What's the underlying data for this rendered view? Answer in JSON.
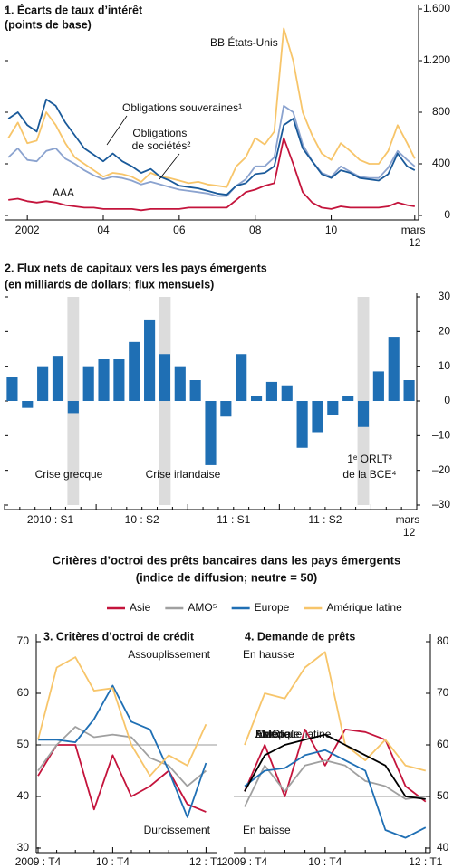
{
  "section": {
    "title": "Critères d’octroi des prêts bancaires dans les pays émergents",
    "subtitle": "(indice de diffusion; neutre = 50)"
  },
  "chart_data": [
    {
      "type": "line",
      "title": "1. Écarts de taux d’intérêt",
      "subtitle": "(points de base)",
      "x": [
        2001.5,
        2001.75,
        2002,
        2002.25,
        2002.5,
        2002.75,
        2003,
        2003.25,
        2003.5,
        2003.75,
        2004,
        2004.25,
        2004.5,
        2004.75,
        2005,
        2005.25,
        2005.5,
        2005.75,
        2006,
        2006.25,
        2006.5,
        2006.75,
        2007,
        2007.25,
        2007.5,
        2007.75,
        2008,
        2008.25,
        2008.5,
        2008.75,
        2009,
        2009.25,
        2009.5,
        2009.75,
        2010,
        2010.25,
        2010.5,
        2010.75,
        2011,
        2011.25,
        2011.5,
        2011.75,
        2012,
        2012.2
      ],
      "series": [
        {
          "name": "BB États-Unis",
          "color": "#f7c56a",
          "values": [
            600,
            720,
            560,
            580,
            800,
            700,
            560,
            450,
            400,
            350,
            300,
            330,
            320,
            300,
            260,
            330,
            300,
            290,
            270,
            250,
            260,
            240,
            230,
            220,
            380,
            450,
            600,
            550,
            650,
            1450,
            1200,
            800,
            620,
            480,
            430,
            560,
            500,
            430,
            400,
            400,
            500,
            700,
            560,
            440
          ]
        },
        {
          "name": "Obligations de sociétés²",
          "color": "#8ba3cf",
          "values": [
            450,
            520,
            430,
            420,
            500,
            520,
            440,
            400,
            350,
            310,
            280,
            300,
            290,
            270,
            240,
            260,
            240,
            220,
            200,
            190,
            180,
            170,
            150,
            150,
            230,
            280,
            380,
            380,
            450,
            850,
            800,
            550,
            420,
            330,
            300,
            380,
            340,
            300,
            290,
            290,
            370,
            500,
            430,
            380
          ]
        },
        {
          "name": "Obligations souveraines¹",
          "color": "#1a5a9a",
          "values": [
            750,
            800,
            700,
            650,
            900,
            850,
            720,
            620,
            520,
            470,
            420,
            480,
            420,
            380,
            330,
            360,
            300,
            270,
            230,
            220,
            210,
            190,
            170,
            160,
            230,
            250,
            320,
            330,
            380,
            700,
            750,
            520,
            420,
            320,
            290,
            350,
            330,
            290,
            280,
            270,
            320,
            480,
            380,
            350
          ]
        },
        {
          "name": "AAA",
          "color": "#c4143c",
          "values": [
            120,
            130,
            110,
            100,
            110,
            100,
            80,
            70,
            60,
            60,
            50,
            50,
            50,
            50,
            40,
            50,
            50,
            50,
            50,
            60,
            60,
            60,
            60,
            60,
            120,
            180,
            200,
            230,
            250,
            600,
            400,
            180,
            100,
            60,
            50,
            70,
            60,
            60,
            60,
            60,
            70,
            100,
            80,
            70
          ]
        }
      ],
      "xlim": [
        2001.4,
        2012.3
      ],
      "xticks": [
        2002,
        {
          "value": 2004,
          "label": "04"
        },
        {
          "value": 2006,
          "label": "06"
        },
        {
          "value": 2008,
          "label": "08"
        },
        {
          "value": 2010,
          "label": "10"
        },
        {
          "value": 2012.2,
          "label": "mars 12"
        }
      ],
      "ylim": [
        0,
        1600
      ],
      "yticks": [
        0,
        400,
        800,
        {
          "value": 1200,
          "label": "1.200"
        },
        {
          "value": 1600,
          "label": "1.600"
        }
      ]
    },
    {
      "type": "bar",
      "title": "2. Flux nets de capitaux vers les pays émergents",
      "subtitle": "(en milliards de dollars; flux mensuels)",
      "categories": [
        null,
        null,
        null,
        "2010 : S1",
        null,
        null,
        null,
        null,
        null,
        "10 : S2",
        null,
        null,
        null,
        null,
        null,
        "11 : S1",
        null,
        null,
        null,
        null,
        null,
        "11 : S2",
        null,
        null,
        null,
        null,
        "mars 12"
      ],
      "values": [
        7,
        -2,
        10,
        13,
        -3.5,
        10,
        12,
        12,
        17,
        23.5,
        13.5,
        10,
        6,
        -18.5,
        -4.5,
        13.5,
        1.5,
        5.5,
        4.5,
        -13.5,
        -9,
        -4,
        1.5,
        -7.5,
        8.5,
        18.5,
        6
      ],
      "color": "#1f6fb4",
      "highlight": [
        4,
        10,
        23
      ],
      "highlight_color": "#dcdcdc",
      "annotations": [
        "Crise grecque",
        "Crise irlandaise",
        "1ᵉ ORLT³",
        "de la BCE⁴"
      ],
      "ylim": [
        -30,
        30
      ],
      "yticks": [
        30,
        20,
        10,
        0,
        {
          "value": -10,
          "label": "–10"
        },
        {
          "value": -20,
          "label": "–20"
        },
        {
          "value": -30,
          "label": "–30"
        }
      ]
    },
    {
      "type": "line",
      "title": "3. Critères d’octroi de crédit",
      "categories": [
        "2009 : T4",
        null,
        null,
        null,
        "10 : T4",
        null,
        null,
        null,
        null,
        "12 : T1"
      ],
      "series": [
        {
          "name": "Asie",
          "color": "#c4143c",
          "values": [
            44,
            50,
            50,
            37.5,
            48,
            40,
            42,
            45,
            38.5,
            37
          ]
        },
        {
          "name": "AMO⁵",
          "color": "#a0a0a0",
          "values": [
            45,
            50,
            53.5,
            51.5,
            52,
            51.5,
            47.5,
            46,
            42,
            45
          ]
        },
        {
          "name": "Europe",
          "color": "#1f6fb4",
          "values": [
            51,
            51,
            50.5,
            55,
            61.5,
            54.5,
            53,
            45,
            36,
            46.5
          ]
        },
        {
          "name": "Amérique latine",
          "color": "#f7c56a",
          "values": [
            51,
            65,
            67,
            60.5,
            61,
            50,
            44,
            48,
            46,
            54
          ]
        }
      ],
      "reference": 50,
      "annotations": [
        "Assouplissement",
        "Durcissement"
      ],
      "ylim": [
        30,
        70
      ],
      "yticks": [
        30,
        40,
        50,
        60,
        70
      ]
    },
    {
      "type": "line",
      "title": "4. Demande de prêts",
      "categories": [
        "2009 : T4",
        null,
        null,
        null,
        "10 : T4",
        null,
        null,
        null,
        null,
        "12 : T1"
      ],
      "series": [
        {
          "color": "#c4143c",
          "values": [
            51,
            60,
            50,
            63,
            56,
            63,
            62.5,
            61,
            52,
            49
          ]
        },
        {
          "color": "#a0a0a0",
          "values": [
            48,
            56,
            51,
            56,
            57,
            56,
            53,
            52,
            49.5,
            50
          ]
        },
        {
          "color": "#1f6fb4",
          "values": [
            52,
            55,
            55.5,
            58,
            59,
            57,
            55,
            43.5,
            42,
            44
          ]
        },
        {
          "color": "#f7c56a",
          "values": [
            60,
            70,
            69,
            75,
            78,
            60,
            57,
            61,
            56,
            55
          ]
        },
        {
          "name": "Mondiale",
          "color": "#000000",
          "values": [
            51,
            58,
            60,
            61,
            62,
            60,
            58,
            56,
            50,
            49.5
          ]
        }
      ],
      "reference": 50,
      "annotations": [
        "En hausse",
        "En baisse"
      ],
      "ylim": [
        40,
        80
      ],
      "yticks": [
        40,
        50,
        60,
        70,
        80
      ]
    }
  ]
}
